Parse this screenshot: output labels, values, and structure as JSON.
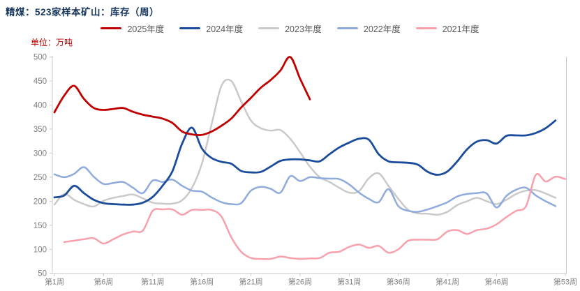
{
  "header": {
    "title": "精煤：523家样本矿山：库存（周）",
    "unit_label": "单位：万吨"
  },
  "colors": {
    "background": "#FFFFFF",
    "title_text": "#16365C",
    "unit_label_text": "#C00000",
    "axis_line": "#C9C9C9",
    "tick_label_text": "#808080",
    "legend_text": "#595959"
  },
  "chart_data": {
    "type": "line",
    "title": "精煤：523家样本矿山：库存（周）",
    "ylabel": "单位：万吨",
    "grid": false,
    "legend_position": "top-center",
    "smoothed": true,
    "y_axis": {
      "min": 50,
      "max": 500,
      "step": 50,
      "tick_labels": [
        "50",
        "100",
        "150",
        "200",
        "250",
        "300",
        "350",
        "400",
        "450",
        "500"
      ]
    },
    "x_axis": {
      "min_week": 1,
      "max_week": 53,
      "ticks": [
        {
          "week": 1,
          "label": "第1周"
        },
        {
          "week": 6,
          "label": "第6周"
        },
        {
          "week": 11,
          "label": "第11周"
        },
        {
          "week": 16,
          "label": "第16周"
        },
        {
          "week": 21,
          "label": "第21周"
        },
        {
          "week": 26,
          "label": "第26周"
        },
        {
          "week": 31,
          "label": "第31周"
        },
        {
          "week": 36,
          "label": "第36周"
        },
        {
          "week": 41,
          "label": "第41周"
        },
        {
          "week": 46,
          "label": "第46周"
        },
        {
          "week": 53,
          "label": "第53周"
        }
      ]
    },
    "series": [
      {
        "name": "2025年度",
        "color": "#C00000",
        "line_width": 2.8,
        "start_week": 1,
        "values": [
          385,
          420,
          440,
          413,
          394,
          390,
          392,
          394,
          386,
          380,
          376,
          372,
          363,
          345,
          339,
          338,
          345,
          357,
          372,
          395,
          415,
          436,
          452,
          472,
          500,
          455,
          412
        ]
      },
      {
        "name": "2024年度",
        "color": "#1B4C9B",
        "line_width": 2.8,
        "start_week": 1,
        "values": [
          208,
          212,
          232,
          217,
          203,
          196,
          194,
          193,
          193,
          197,
          209,
          232,
          262,
          320,
          353,
          310,
          290,
          282,
          278,
          263,
          260,
          261,
          272,
          284,
          287,
          287,
          285,
          283,
          298,
          312,
          322,
          330,
          328,
          298,
          283,
          281,
          280,
          276,
          261,
          255,
          262,
          283,
          308,
          324,
          327,
          320,
          336,
          337,
          337,
          342,
          352,
          368
        ]
      },
      {
        "name": "2023年度",
        "color": "#C9C9C9",
        "line_width": 2.5,
        "start_week": 1,
        "values": [
          193,
          215,
          203,
          194,
          189,
          201,
          207,
          211,
          214,
          206,
          197,
          195,
          195,
          202,
          228,
          278,
          360,
          440,
          450,
          408,
          368,
          352,
          347,
          348,
          330,
          302,
          272,
          250,
          240,
          228,
          218,
          221,
          248,
          258,
          232,
          205,
          182,
          175,
          174,
          172,
          178,
          192,
          200,
          207,
          200,
          194,
          203,
          215,
          222,
          223,
          216,
          207
        ]
      },
      {
        "name": "2022年度",
        "color": "#8FAADC",
        "line_width": 2.5,
        "start_week": 1,
        "values": [
          256,
          250,
          257,
          271,
          251,
          236,
          238,
          240,
          228,
          217,
          243,
          240,
          245,
          232,
          222,
          220,
          208,
          198,
          194,
          196,
          222,
          230,
          226,
          218,
          252,
          242,
          250,
          248,
          247,
          246,
          235,
          218,
          205,
          198,
          225,
          190,
          180,
          178,
          183,
          190,
          198,
          210,
          215,
          217,
          216,
          187,
          211,
          224,
          228,
          212,
          200,
          190
        ]
      },
      {
        "name": "2021年度",
        "color": "#F8A1AC",
        "line_width": 2.5,
        "start_week": 2,
        "values": [
          115,
          118,
          121,
          123,
          112,
          121,
          131,
          137,
          139,
          180,
          183,
          183,
          172,
          182,
          182,
          182,
          168,
          125,
          95,
          82,
          80,
          80,
          85,
          82,
          80,
          81,
          82,
          93,
          95,
          105,
          110,
          103,
          107,
          93,
          100,
          118,
          120,
          120,
          121,
          137,
          140,
          132,
          140,
          143,
          152,
          167,
          180,
          190,
          255,
          241,
          251,
          246
        ]
      }
    ],
    "z_order_bottom_to_top": [
      "2023年度",
      "2022年度",
      "2021年度",
      "2024年度",
      "2025年度"
    ]
  }
}
